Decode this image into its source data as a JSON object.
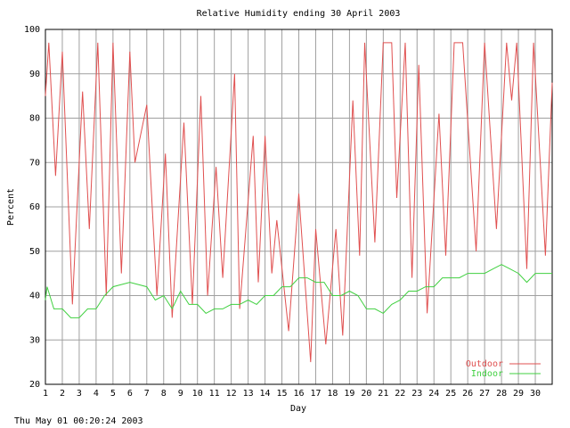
{
  "chart_data": {
    "type": "line",
    "title": "Relative Humidity ending 30 April 2003",
    "x_label": "Day",
    "y_label": "Percent",
    "footer": "Thu May 01 00:20:24 2003",
    "xlim": [
      1,
      31
    ],
    "xticks": [
      1,
      2,
      3,
      4,
      5,
      6,
      7,
      8,
      9,
      10,
      11,
      12,
      13,
      14,
      15,
      16,
      17,
      18,
      19,
      20,
      21,
      22,
      23,
      24,
      25,
      26,
      27,
      28,
      29,
      30
    ],
    "ylim": [
      20,
      100
    ],
    "yticks": [
      20,
      30,
      40,
      50,
      60,
      70,
      80,
      90,
      100
    ],
    "grid": true,
    "legend": "lower right",
    "series": [
      {
        "name": "Outdoor",
        "color": "#e05050",
        "x": [
          1.0,
          1.2,
          1.6,
          2.0,
          2.6,
          3.2,
          3.6,
          4.1,
          4.6,
          5.0,
          5.5,
          6.0,
          6.3,
          7.0,
          7.6,
          8.1,
          8.5,
          9.2,
          9.7,
          10.2,
          10.6,
          11.1,
          11.5,
          12.2,
          12.5,
          13.3,
          13.6,
          14.0,
          14.4,
          14.7,
          15.4,
          16.0,
          16.7,
          17.0,
          17.6,
          18.2,
          18.6,
          19.2,
          19.6,
          19.9,
          20.5,
          21.0,
          21.5,
          21.8,
          22.3,
          22.7,
          23.1,
          23.6,
          24.3,
          24.7,
          25.2,
          25.7,
          26.5,
          27.0,
          27.7,
          28.3,
          28.6,
          28.9,
          29.5,
          29.9,
          30.6,
          31.0
        ],
        "values": [
          85,
          97,
          67,
          95,
          38,
          86,
          55,
          97,
          40,
          97,
          45,
          95,
          70,
          83,
          40,
          72,
          35,
          79,
          38,
          85,
          40,
          69,
          44,
          90,
          37,
          76,
          43,
          76,
          45,
          57,
          32,
          63,
          25,
          55,
          29,
          55,
          31,
          84,
          49,
          97,
          52,
          97,
          97,
          62,
          97,
          44,
          92,
          36,
          81,
          49,
          97,
          97,
          50,
          97,
          55,
          97,
          84,
          97,
          46,
          97,
          49,
          88
        ]
      },
      {
        "name": "Indoor",
        "color": "#40d040",
        "x": [
          1.0,
          1.1,
          1.5,
          2.0,
          2.5,
          3.0,
          3.5,
          4.0,
          4.5,
          5.0,
          6.0,
          7.0,
          7.5,
          8.0,
          8.5,
          9.0,
          9.5,
          10.0,
          10.5,
          11.0,
          11.5,
          12.0,
          12.5,
          13.0,
          13.5,
          14.0,
          14.5,
          15.0,
          15.5,
          16.0,
          16.5,
          17.0,
          17.5,
          18.0,
          18.5,
          19.0,
          19.5,
          20.0,
          20.5,
          21.0,
          21.5,
          22.0,
          22.5,
          23.0,
          23.5,
          24.0,
          24.5,
          25.0,
          25.5,
          26.0,
          26.5,
          27.0,
          27.5,
          28.0,
          28.5,
          29.0,
          29.5,
          30.0,
          30.5,
          31.0
        ],
        "values": [
          39,
          42,
          37,
          37,
          35,
          35,
          37,
          37,
          40,
          42,
          43,
          42,
          39,
          40,
          37,
          41,
          38,
          38,
          36,
          37,
          37,
          38,
          38,
          39,
          38,
          40,
          40,
          42,
          42,
          44,
          44,
          43,
          43,
          40,
          40,
          41,
          40,
          37,
          37,
          36,
          38,
          39,
          41,
          41,
          42,
          42,
          44,
          44,
          44,
          45,
          45,
          45,
          46,
          47,
          46,
          45,
          43,
          45,
          45,
          45
        ]
      }
    ]
  }
}
